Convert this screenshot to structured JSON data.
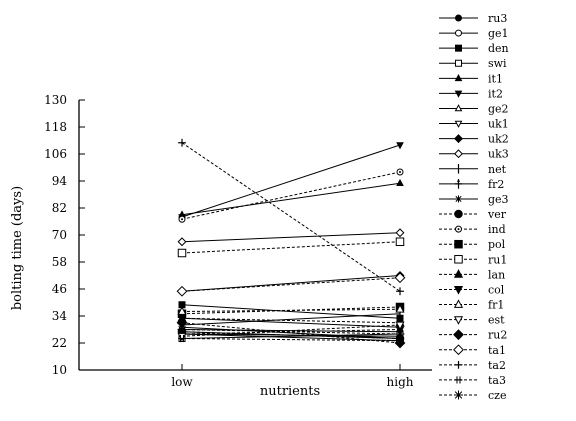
{
  "chart_data": {
    "type": "line",
    "title": "",
    "xlabel": "nutrients",
    "ylabel": "bolting time (days)",
    "categories": [
      "low",
      "high"
    ],
    "ylim": [
      10,
      130
    ],
    "yticks": [
      "10",
      "22",
      "34",
      "46",
      "58",
      "70",
      "82",
      "94",
      "106",
      "118",
      "130"
    ],
    "grid": false,
    "legend_position": "right",
    "series": [
      {
        "name": "ru3",
        "marker": "filled-circle",
        "dash": "solid",
        "values": [
          28,
          27
        ]
      },
      {
        "name": "ge1",
        "marker": "open-circle",
        "dash": "solid",
        "values": [
          26,
          25
        ]
      },
      {
        "name": "den",
        "marker": "filled-square",
        "dash": "solid",
        "values": [
          39,
          33
        ]
      },
      {
        "name": "swi",
        "marker": "open-square",
        "dash": "solid",
        "values": [
          24,
          26
        ]
      },
      {
        "name": "it1",
        "marker": "filled-triangle-up",
        "dash": "solid",
        "values": [
          79,
          93
        ]
      },
      {
        "name": "it2",
        "marker": "filled-triangle-down",
        "dash": "solid",
        "values": [
          78,
          110
        ]
      },
      {
        "name": "ge2",
        "marker": "open-triangle-up",
        "dash": "solid",
        "values": [
          29,
          24
        ]
      },
      {
        "name": "uk1",
        "marker": "open-triangle-down",
        "dash": "solid",
        "values": [
          33,
          29
        ]
      },
      {
        "name": "uk2",
        "marker": "filled-diamond",
        "dash": "solid",
        "values": [
          45,
          52
        ]
      },
      {
        "name": "uk3",
        "marker": "open-diamond",
        "dash": "solid",
        "values": [
          67,
          71
        ]
      },
      {
        "name": "net",
        "marker": "vbar",
        "dash": "solid",
        "values": [
          30,
          35
        ]
      },
      {
        "name": "fr2",
        "marker": "plus-bar",
        "dash": "solid",
        "values": [
          27,
          24
        ]
      },
      {
        "name": "ge3",
        "marker": "asterisk",
        "dash": "solid",
        "values": [
          26,
          23
        ]
      },
      {
        "name": "ver",
        "marker": "filled-circle-big",
        "dash": "dashed",
        "values": [
          27,
          24
        ]
      },
      {
        "name": "ind",
        "marker": "open-circle-dot",
        "dash": "dashed",
        "values": [
          77,
          98
        ]
      },
      {
        "name": "pol",
        "marker": "filled-square-big",
        "dash": "dashed",
        "values": [
          35,
          38
        ]
      },
      {
        "name": "ru1",
        "marker": "open-square-big",
        "dash": "dashed",
        "values": [
          62,
          67
        ]
      },
      {
        "name": "lan",
        "marker": "filled-triangle-up-big",
        "dash": "dashed",
        "values": [
          33,
          31
        ]
      },
      {
        "name": "col",
        "marker": "filled-triangle-down-big",
        "dash": "dashed",
        "values": [
          26,
          28
        ]
      },
      {
        "name": "fr1",
        "marker": "open-triangle-up-big",
        "dash": "dashed",
        "values": [
          36,
          37
        ]
      },
      {
        "name": "est",
        "marker": "open-triangle-down-big",
        "dash": "dashed",
        "values": [
          25,
          30
        ]
      },
      {
        "name": "ru2",
        "marker": "filled-diamond-big",
        "dash": "dashed",
        "values": [
          31,
          22
        ]
      },
      {
        "name": "ta1",
        "marker": "open-diamond-big",
        "dash": "dashed",
        "values": [
          45,
          51
        ]
      },
      {
        "name": "ta2",
        "marker": "plus",
        "dash": "dashed",
        "values": [
          111,
          45
        ]
      },
      {
        "name": "ta3",
        "marker": "double-plus",
        "dash": "dashed",
        "values": [
          24,
          23
        ]
      },
      {
        "name": "cze",
        "marker": "asterisk-big",
        "dash": "dashed",
        "values": [
          28,
          26
        ]
      }
    ]
  }
}
